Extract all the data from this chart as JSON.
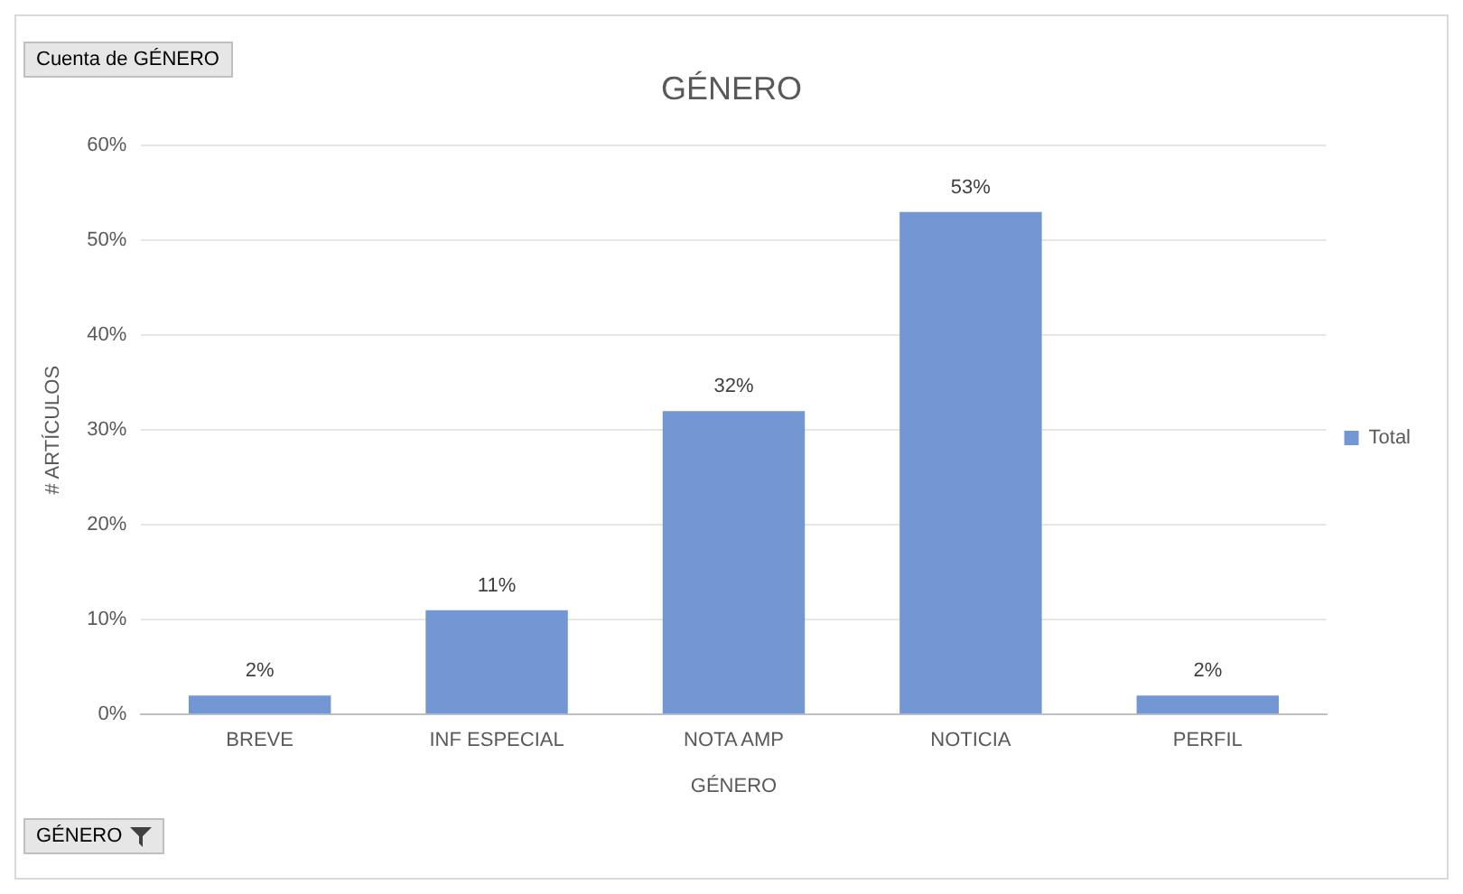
{
  "chart_data": {
    "type": "bar",
    "title": "GÉNERO",
    "xlabel": "GÉNERO",
    "ylabel": "# ARTÍCULOS",
    "categories": [
      "BREVE",
      "INF ESPECIAL",
      "NOTA AMP",
      "NOTICIA",
      "PERFIL"
    ],
    "series": [
      {
        "name": "Total",
        "color": "#7297d2",
        "values": [
          2,
          11,
          32,
          53,
          2
        ],
        "value_labels": [
          "2%",
          "11%",
          "32%",
          "53%",
          "2%"
        ]
      }
    ],
    "ylim": [
      0,
      60
    ],
    "yticks": [
      {
        "value": 0,
        "label": "0%"
      },
      {
        "value": 10,
        "label": "10%"
      },
      {
        "value": 20,
        "label": "20%"
      },
      {
        "value": 30,
        "label": "30%"
      },
      {
        "value": 40,
        "label": "40%"
      },
      {
        "value": 50,
        "label": "50%"
      },
      {
        "value": 60,
        "label": "60%"
      }
    ],
    "grid": "y",
    "legend": "right",
    "annotations": [
      "Cuenta de GÉNERO",
      "GÉNERO"
    ]
  }
}
